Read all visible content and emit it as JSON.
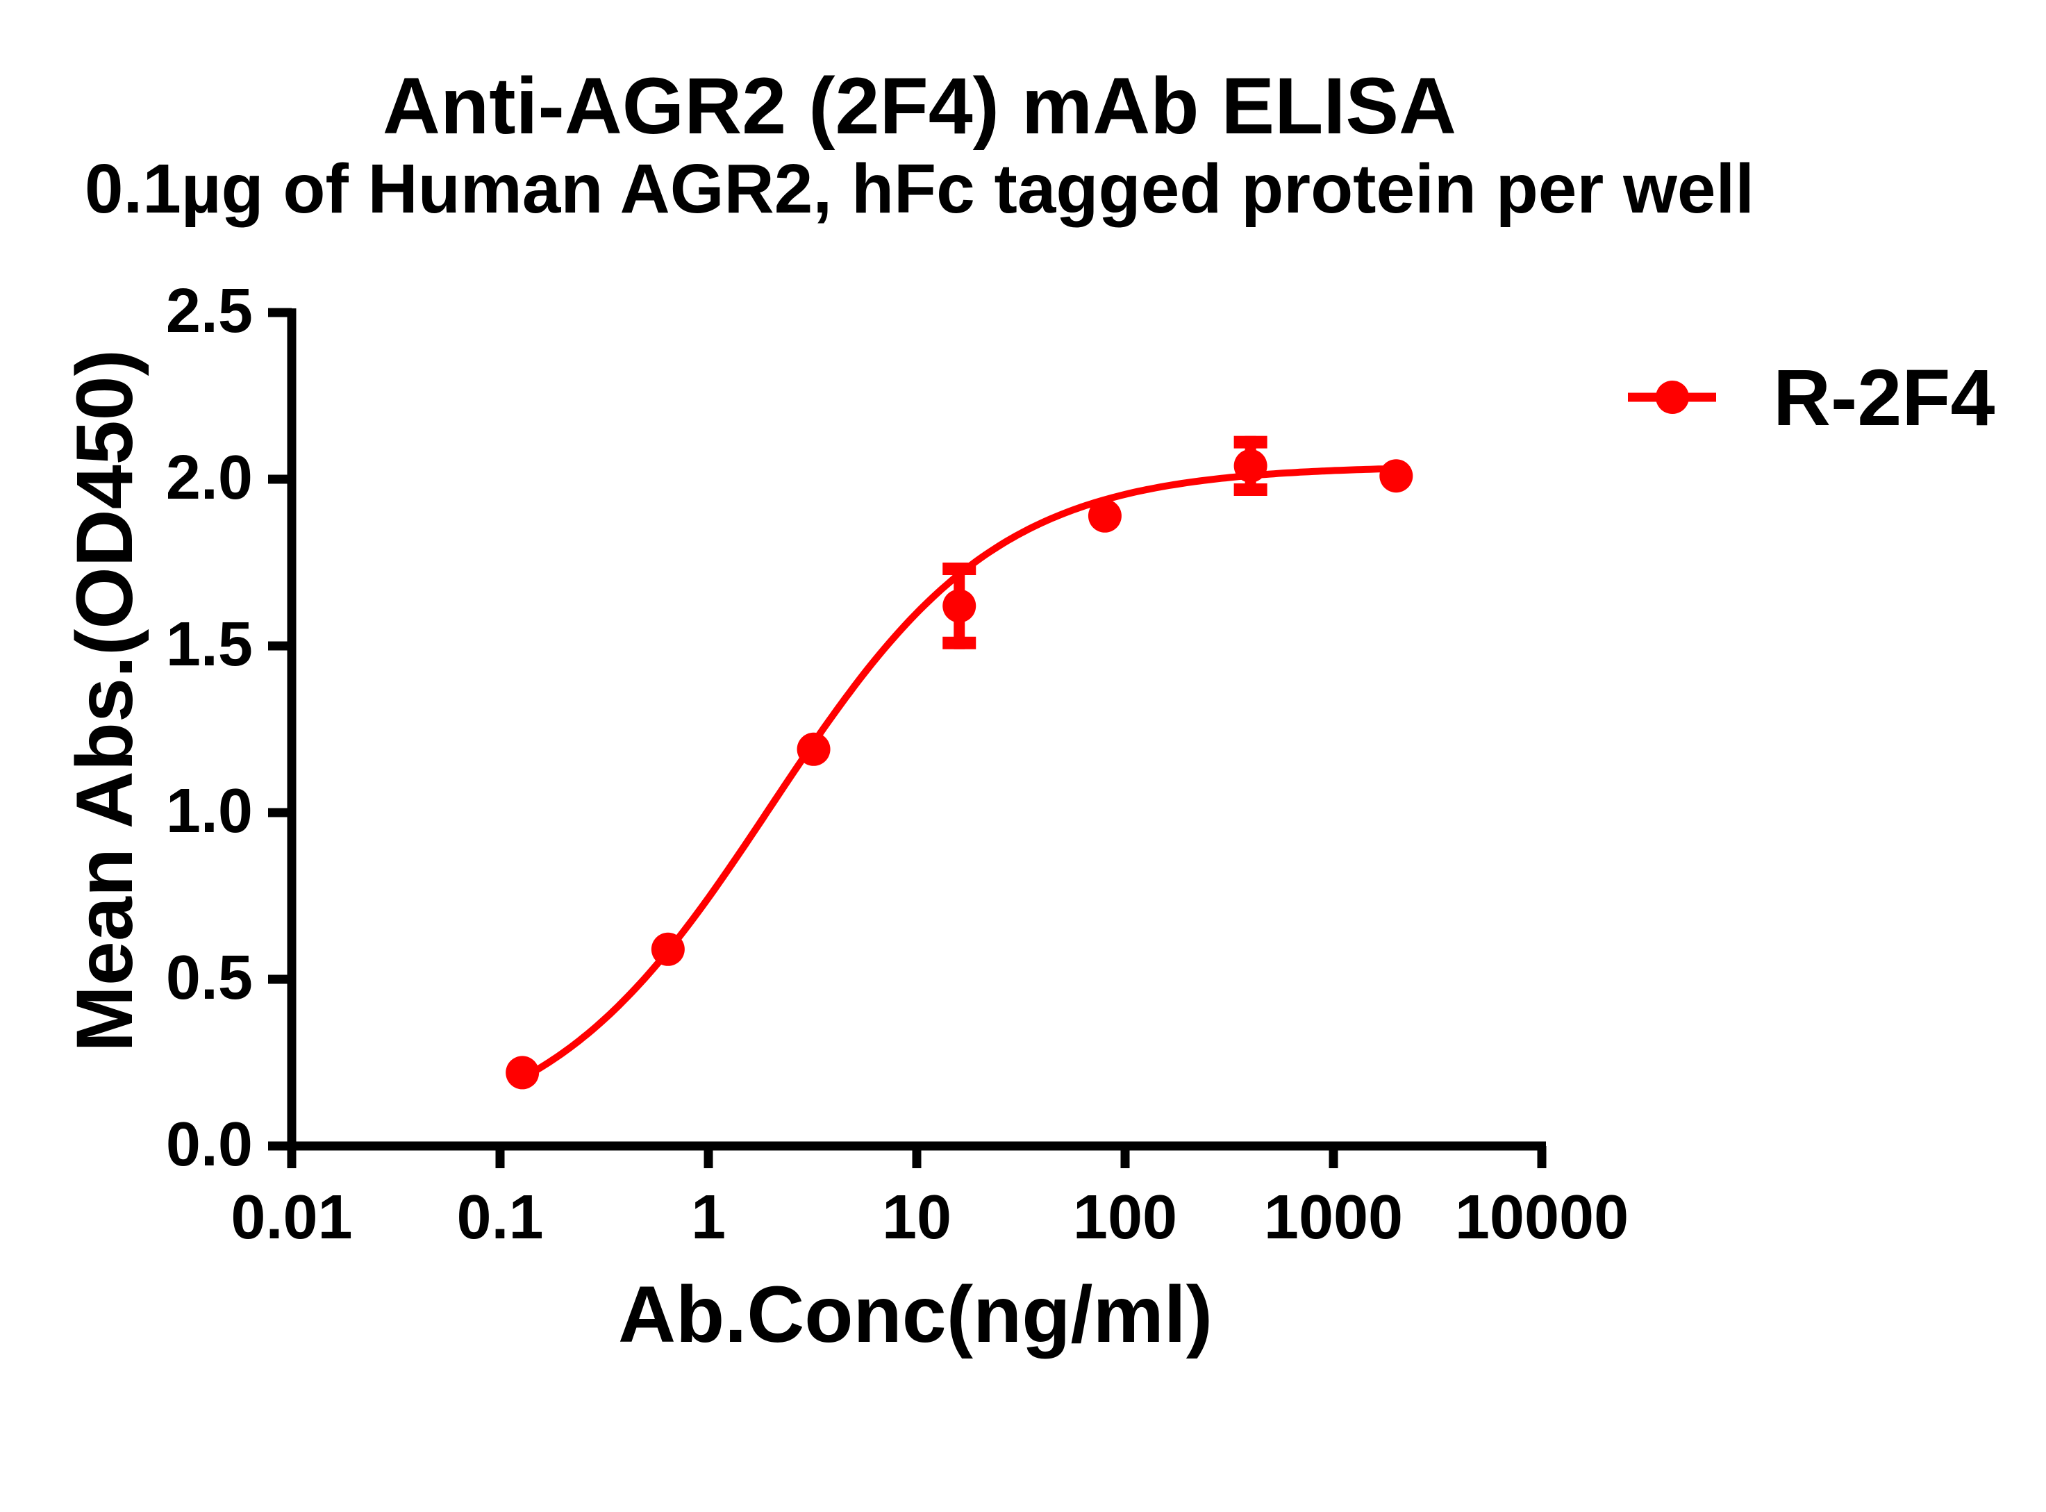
{
  "chart_data": {
    "type": "line",
    "title": "Anti-AGR2 (2F4) mAb ELISA",
    "subtitle": "0.1µg of Human AGR2, hFc tagged protein per well",
    "xlabel": "Ab.Conc(ng/ml)",
    "ylabel": "Mean Abs.(OD450)",
    "xscale": "log",
    "xlim": [
      0.01,
      10000
    ],
    "ylim": [
      0,
      2.5
    ],
    "x_ticks": [
      "0.01",
      "0.1",
      "1",
      "10",
      "100",
      "1000",
      "10000"
    ],
    "x_tick_values": [
      0.01,
      0.1,
      1,
      10,
      100,
      1000,
      10000
    ],
    "y_ticks": [
      "0.0",
      "0.5",
      "1.0",
      "1.5",
      "2.0",
      "2.5"
    ],
    "y_tick_values": [
      0,
      0.5,
      1.0,
      1.5,
      2.0,
      2.5
    ],
    "grid": false,
    "legend_position": "right",
    "series": [
      {
        "name": "R-2F4",
        "color": "#ff0000",
        "marker": "circle",
        "x": [
          0.128,
          0.64,
          3.2,
          16,
          80,
          400,
          2000
        ],
        "values": [
          0.22,
          0.59,
          1.19,
          1.62,
          1.89,
          2.04,
          2.01
        ],
        "error": [
          0,
          0,
          0,
          0.13,
          0,
          0.09,
          0
        ],
        "fit": {
          "model": "4PL",
          "bottom": 0.0,
          "top": 2.04,
          "ec50": 2.0,
          "hill": 0.8
        }
      }
    ]
  },
  "legend": {
    "label": "R-2F4"
  }
}
